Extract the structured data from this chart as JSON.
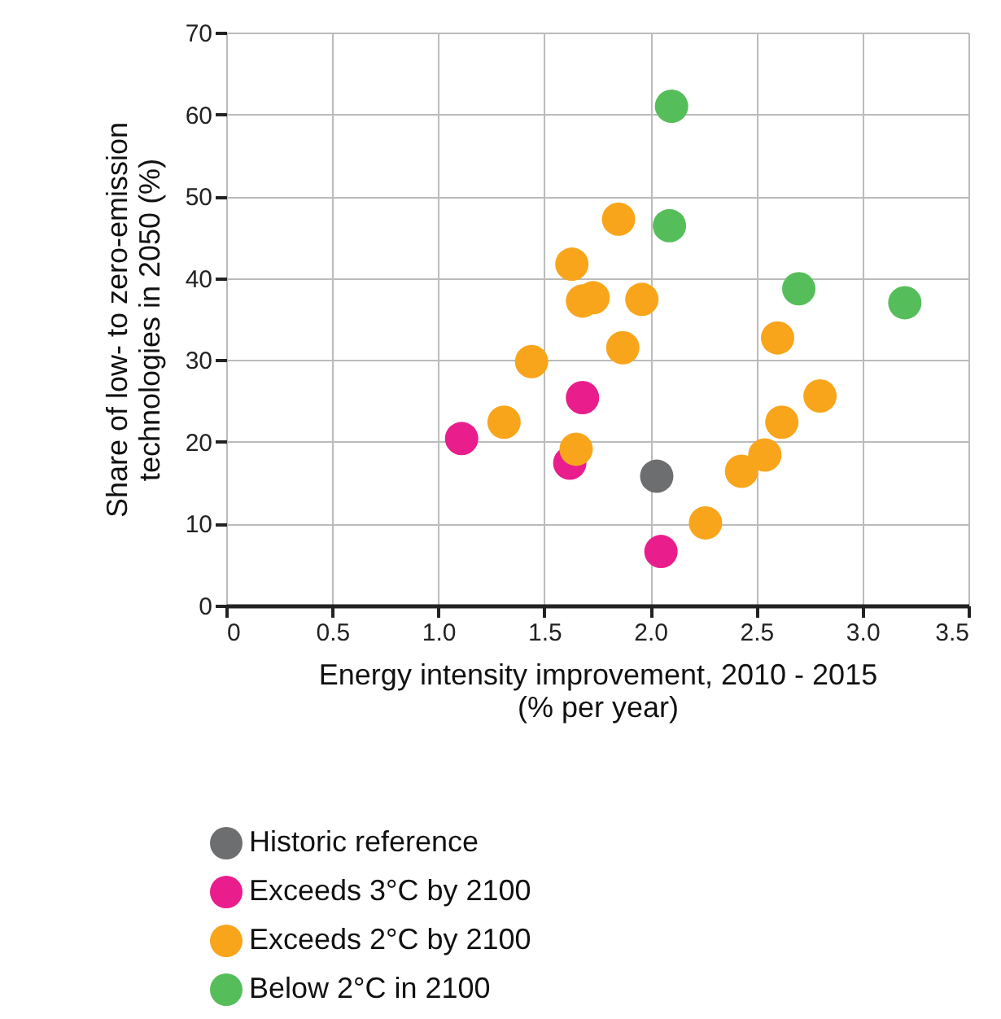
{
  "chart_data": {
    "type": "scatter",
    "xlabel": "Energy intensity improvement, 2010 - 2015 (% per year)",
    "ylabel": "Share of low- to zero-emission technologies in 2050 (%)",
    "xlim": [
      0,
      3.5
    ],
    "xticks": [
      0,
      0.5,
      {
        "value": 1,
        "label": "1.0"
      },
      1.5,
      {
        "value": 2,
        "label": "2.0"
      },
      2.5,
      {
        "value": 3,
        "label": "3.0"
      },
      3.5
    ],
    "ylim": [
      0,
      70
    ],
    "yticks": [
      0,
      10,
      20,
      30,
      40,
      50,
      60,
      70
    ],
    "grid": true,
    "legend": "bottom",
    "marker": "circle",
    "series": [
      {
        "name": "Historic reference",
        "color": "#6d6e70",
        "x": [
          2.03
        ],
        "values": [
          15.8
        ]
      },
      {
        "name": "Exceeds 3°C by 2100",
        "color": "#e91e8c",
        "x": [
          1.11,
          1.68,
          1.62,
          2.05
        ],
        "values": [
          20.4,
          25.4,
          17.4,
          6.6
        ]
      },
      {
        "name": "Exceeds 2°C by 2100",
        "color": "#f9a51b",
        "x": [
          1.85,
          1.63,
          1.68,
          1.73,
          1.96,
          1.87,
          1.44,
          1.31,
          1.65,
          2.6,
          2.8,
          2.62,
          2.54,
          2.43,
          2.26
        ],
        "values": [
          47.2,
          41.7,
          37.2,
          37.6,
          37.4,
          31.5,
          29.8,
          22.4,
          19.1,
          32.7,
          25.6,
          22.4,
          18.4,
          16.4,
          10.1
        ]
      },
      {
        "name": "Below 2°C in 2100",
        "color": "#55be5a",
        "x": [
          2.1,
          2.09,
          2.7,
          3.2
        ],
        "values": [
          61.0,
          46.4,
          38.7,
          37.0
        ]
      }
    ]
  }
}
